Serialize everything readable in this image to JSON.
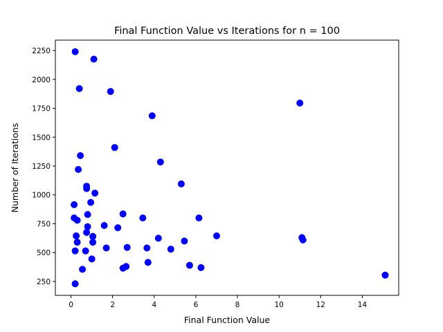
{
  "chart_data": {
    "type": "scatter",
    "title": "Final Function Value vs Iterations for n = 100",
    "xlabel": "Final Function Value",
    "ylabel": "Number of Iterations",
    "xlim": [
      -0.75,
      15.75
    ],
    "ylim": [
      130,
      2340
    ],
    "xticks": [
      0,
      2,
      4,
      6,
      8,
      10,
      12,
      14
    ],
    "yticks": [
      250,
      500,
      750,
      1000,
      1250,
      1500,
      1750,
      2000,
      2250
    ],
    "grid": false,
    "legend": "none",
    "marker_color": "#0000ff",
    "series": [
      {
        "points": [
          [
            0.2,
            2240
          ],
          [
            1.1,
            2175
          ],
          [
            0.4,
            1920
          ],
          [
            1.9,
            1895
          ],
          [
            11.0,
            1795
          ],
          [
            3.9,
            1685
          ],
          [
            2.1,
            1410
          ],
          [
            0.45,
            1340
          ],
          [
            4.3,
            1285
          ],
          [
            0.35,
            1220
          ],
          [
            5.3,
            1095
          ],
          [
            0.75,
            1075
          ],
          [
            0.75,
            1055
          ],
          [
            1.15,
            1015
          ],
          [
            0.95,
            935
          ],
          [
            0.15,
            915
          ],
          [
            2.5,
            835
          ],
          [
            0.8,
            830
          ],
          [
            0.15,
            800
          ],
          [
            3.45,
            800
          ],
          [
            6.15,
            800
          ],
          [
            0.3,
            780
          ],
          [
            1.6,
            735
          ],
          [
            0.8,
            725
          ],
          [
            2.25,
            715
          ],
          [
            0.75,
            675
          ],
          [
            0.25,
            645
          ],
          [
            7.0,
            645
          ],
          [
            1.05,
            640
          ],
          [
            11.1,
            630
          ],
          [
            4.2,
            625
          ],
          [
            11.15,
            610
          ],
          [
            0.3,
            590
          ],
          [
            1.05,
            590
          ],
          [
            5.45,
            600
          ],
          [
            2.7,
            545
          ],
          [
            1.7,
            540
          ],
          [
            3.65,
            540
          ],
          [
            4.8,
            530
          ],
          [
            0.2,
            515
          ],
          [
            0.7,
            515
          ],
          [
            1.0,
            445
          ],
          [
            3.7,
            415
          ],
          [
            5.7,
            390
          ],
          [
            2.65,
            380
          ],
          [
            6.25,
            370
          ],
          [
            2.5,
            365
          ],
          [
            0.55,
            355
          ],
          [
            15.1,
            305
          ],
          [
            0.2,
            230
          ]
        ]
      }
    ]
  }
}
